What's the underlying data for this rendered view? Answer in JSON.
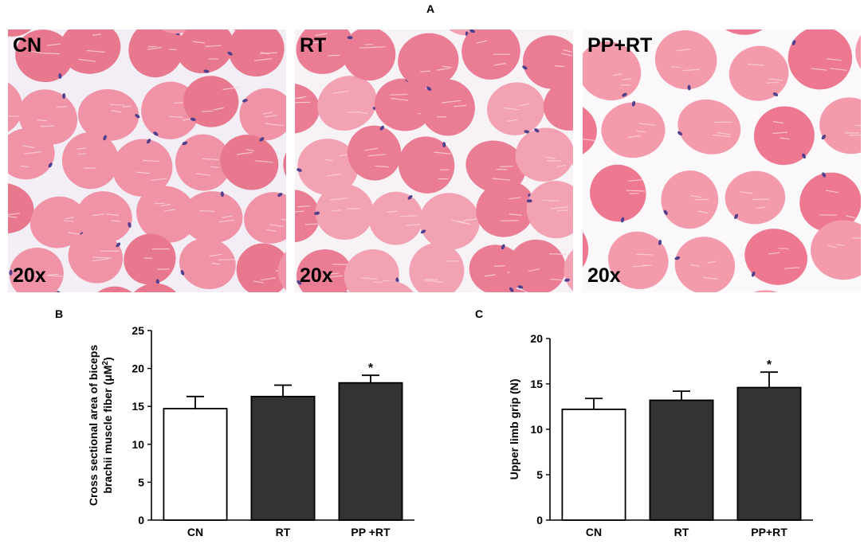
{
  "panel_letters": {
    "a": "A",
    "b": "B",
    "c": "C"
  },
  "micrographs": [
    {
      "group": "CN",
      "magnification": "20x",
      "background": "#f3eef5",
      "fiber": "#e8788e",
      "fiber_light": "#f093a6",
      "nucleus": "#4f3f8c"
    },
    {
      "group": "RT",
      "magnification": "20x",
      "background": "#f7f2f5",
      "fiber": "#ea7d93",
      "fiber_light": "#f2a2b2",
      "nucleus": "#4f3f8c"
    },
    {
      "group": "PP+RT",
      "magnification": "20x",
      "background": "#fbf8fb",
      "fiber": "#ed7890",
      "fiber_light": "#f39aab",
      "nucleus": "#4f3f8c"
    }
  ],
  "chart_data": [
    {
      "type": "bar",
      "panel": "B",
      "categories": [
        "CN",
        "RT",
        "PP +RT"
      ],
      "values": [
        14.7,
        16.3,
        18.1
      ],
      "errors": [
        1.6,
        1.5,
        1.0
      ],
      "significance": [
        "",
        "",
        "*"
      ],
      "bar_colors": [
        "#ffffff",
        "#333333",
        "#333333"
      ],
      "ylabel_line1": "Cross sectional area of biceps",
      "ylabel_line2": "brachii muscle fiber (μM",
      "ylabel_sup": "2",
      "ylabel_end": ")",
      "ylim": [
        0,
        25
      ],
      "yticks": [
        0,
        5,
        10,
        15,
        20,
        25
      ]
    },
    {
      "type": "bar",
      "panel": "C",
      "categories": [
        "CN",
        "RT",
        "PP+RT"
      ],
      "values": [
        12.2,
        13.2,
        14.6
      ],
      "errors": [
        1.2,
        1.0,
        1.7
      ],
      "significance": [
        "",
        "",
        "*"
      ],
      "bar_colors": [
        "#ffffff",
        "#333333",
        "#333333"
      ],
      "ylabel": "Upper limb grip (N)",
      "ylim": [
        0,
        20
      ],
      "yticks": [
        0,
        5,
        10,
        15,
        20
      ]
    }
  ]
}
